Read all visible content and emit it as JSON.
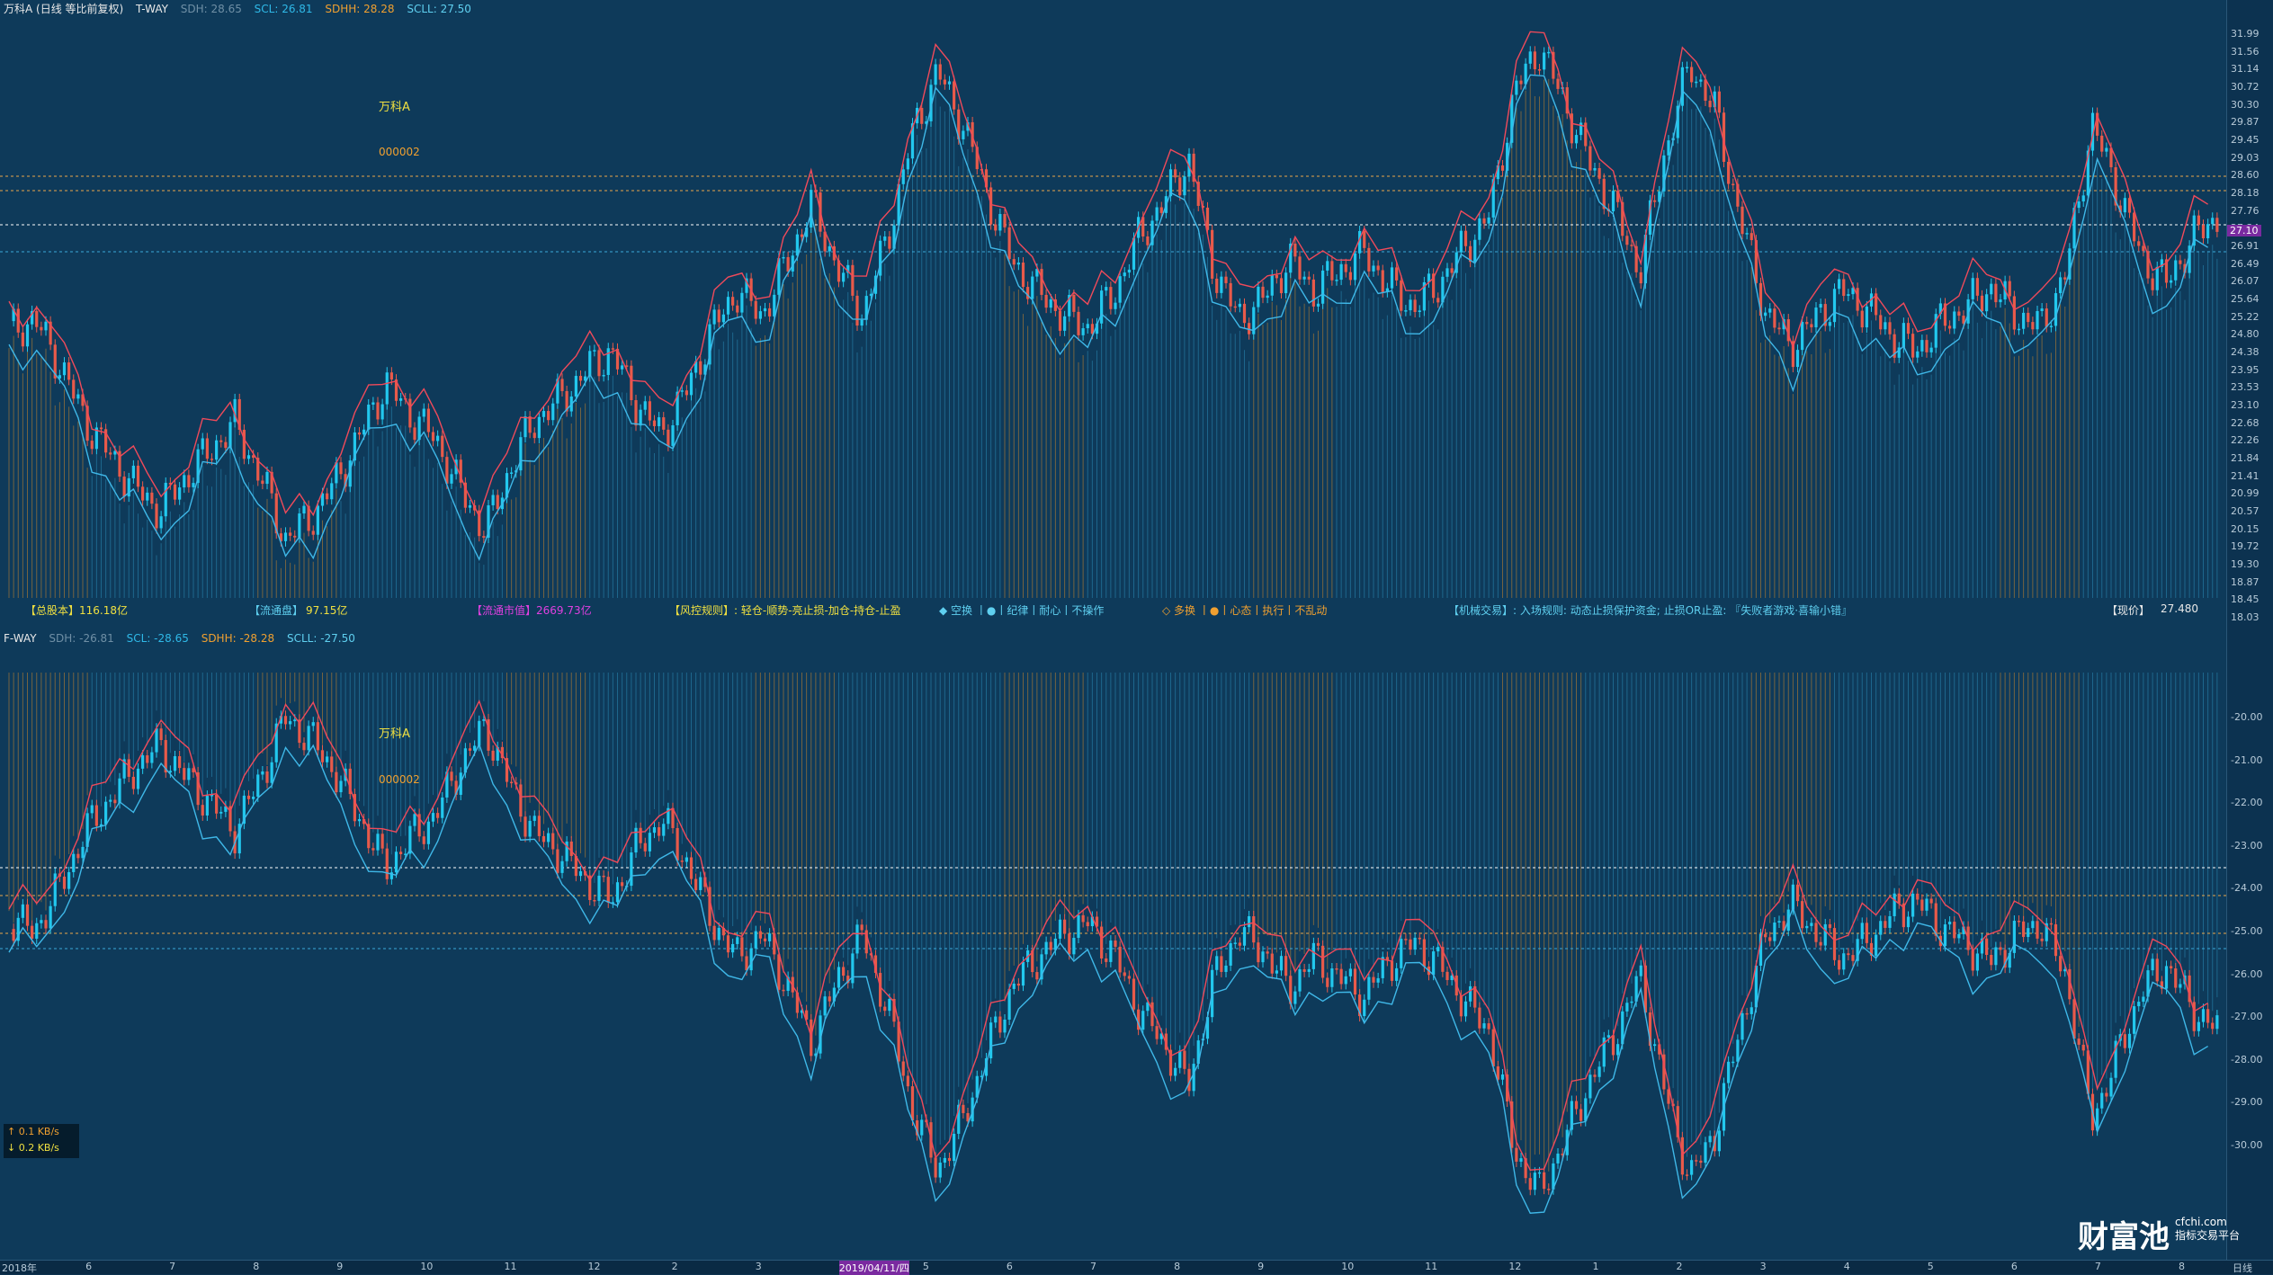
{
  "top_header": {
    "title": "万科A (日线 等比前复权)",
    "indicator": "T-WAY",
    "sdh": "SDH: 28.65",
    "scl": "SCL: 26.81",
    "sdhh": "SDHH: 28.28",
    "scll": "SCLL: 27.50"
  },
  "bot_header": {
    "indicator": "F-WAY",
    "sdh": "SDH: -26.81",
    "scl": "SCL: -28.65",
    "sdhh": "SDHH: -28.28",
    "scll": "SCLL: -27.50"
  },
  "top_labels": {
    "name": "万科A",
    "code": "000002"
  },
  "bot_labels": {
    "name": "万科A",
    "code": "000002"
  },
  "info": {
    "total_shares_label": "【总股本】",
    "total_shares_value": "116.18亿",
    "float_label": "【流通盘】",
    "float_value": "97.15亿",
    "mktcap_label": "【流通市值】",
    "mktcap_value": "2669.73亿",
    "rules": "【风控规则】: 轻仓-顺势-亮止损-加仓-持仓-止盈",
    "short_rules": "◆ 空换 丨●丨纪律丨耐心丨不操作",
    "long_rules": "◇ 多换 丨●丨心态丨执行丨不乱动",
    "mech": "【机械交易】: 入场规则: 动态止损保护资金; 止损OR止盈: 『失败者游戏·喜输小错』",
    "price_label": "【现价】",
    "price_value": "27.480"
  },
  "top_yaxis": [
    "31.99",
    "31.56",
    "31.14",
    "30.72",
    "30.30",
    "29.87",
    "29.45",
    "29.03",
    "28.60",
    "28.18",
    "27.76",
    "27.34",
    "26.91",
    "26.49",
    "26.07",
    "25.64",
    "25.22",
    "24.80",
    "24.38",
    "23.95",
    "23.53",
    "23.10",
    "22.68",
    "22.26",
    "21.84",
    "21.41",
    "20.99",
    "20.57",
    "20.15",
    "19.72",
    "19.30",
    "18.87",
    "18.45",
    "18.03"
  ],
  "bot_yaxis": [
    "-20.00",
    "-21.00",
    "-22.00",
    "-23.00",
    "-24.00",
    "-25.00",
    "-26.00",
    "-27.00",
    "-28.00",
    "-29.00",
    "-30.00"
  ],
  "price_tag": "27.10",
  "xaxis": [
    "2018年",
    "6",
    "7",
    "8",
    "9",
    "10",
    "11",
    "12",
    "2",
    "3",
    "2019/04/11/四",
    "5",
    "6",
    "7",
    "8",
    "9",
    "10",
    "11",
    "12",
    "1",
    "2",
    "3",
    "4",
    "5",
    "6",
    "7",
    "8",
    "日线"
  ],
  "net": {
    "up": "↑ 0.1 KB/s",
    "down": "↓ 0.2 KB/s"
  },
  "brand": {
    "name": "财富池",
    "url": "cfchi.com",
    "tag": "指标交易平台"
  },
  "chart_data": {
    "type": "candlestick",
    "title": "万科A (日线 等比前复权)",
    "ylim": [
      18.03,
      31.99
    ],
    "current_price": 27.48,
    "close_series": [
      24.6,
      24.9,
      23.8,
      22.4,
      21.5,
      20.7,
      20.1,
      20.9,
      21.6,
      22.3,
      21.0,
      19.4,
      19.9,
      20.8,
      22.0,
      23.3,
      22.5,
      21.9,
      20.6,
      19.6,
      21.2,
      22.4,
      22.9,
      23.6,
      24.1,
      22.8,
      22.0,
      23.1,
      24.6,
      25.6,
      25.0,
      26.3,
      27.8,
      26.2,
      25.0,
      26.9,
      29.5,
      31.1,
      29.8,
      28.0,
      26.3,
      25.6,
      25.0,
      24.7,
      25.5,
      26.9,
      27.8,
      28.9,
      26.2,
      24.9,
      25.4,
      26.4,
      25.6,
      26.1,
      26.6,
      25.7,
      25.2,
      25.8,
      26.7,
      27.5,
      30.6,
      31.7,
      30.3,
      28.8,
      27.6,
      26.1,
      29.1,
      31.3,
      30.1,
      27.4,
      25.1,
      24.2,
      24.9,
      25.6,
      25.2,
      24.5,
      24.1,
      24.8,
      25.2,
      25.7,
      25.0,
      24.7,
      26.1,
      29.8,
      28.2,
      26.4,
      25.8,
      26.9,
      27.48
    ]
  }
}
